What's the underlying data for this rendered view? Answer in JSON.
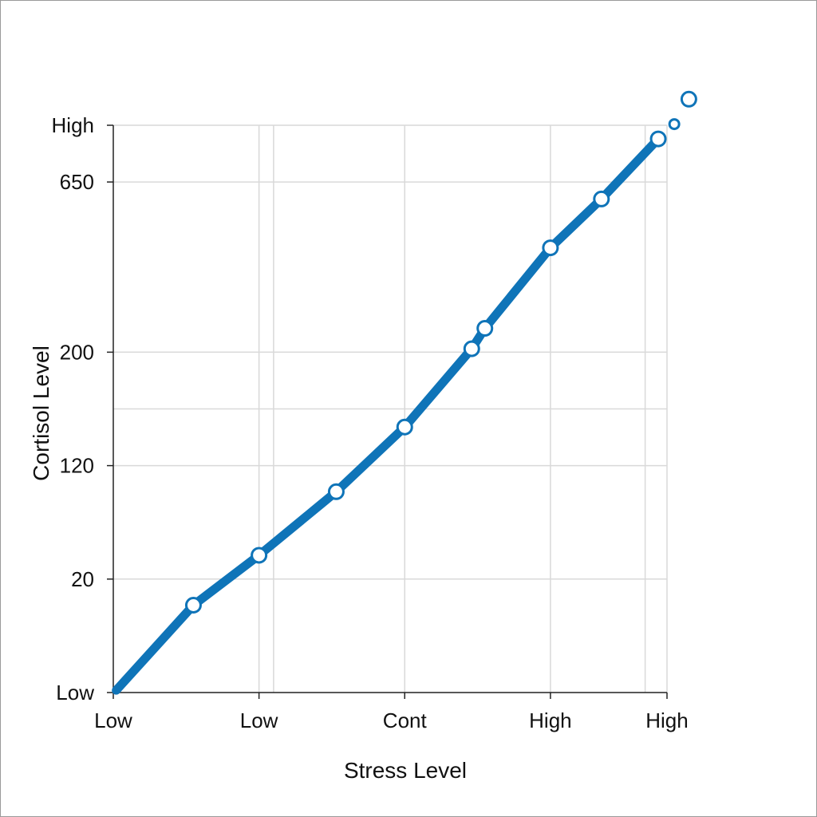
{
  "chart_data": {
    "type": "line",
    "title": "",
    "xlabel": "Stress Level",
    "ylabel": "Cortisol Level",
    "x_ticks": [
      "Low",
      "Low",
      "Cont",
      "High",
      "High"
    ],
    "y_ticks": [
      "Low",
      "20",
      "120",
      "200",
      "650",
      "High"
    ],
    "grid": true,
    "legend": "none",
    "series": [
      {
        "color": "#0f74b8",
        "points": [
          {
            "x": 0.02,
            "y": 0.02,
            "marker": false
          },
          {
            "x": 0.55,
            "y": 0.77
          },
          {
            "x": 1.0,
            "y": 1.21
          },
          {
            "x": 1.53,
            "y": 1.77
          },
          {
            "x": 2.0,
            "y": 2.34
          },
          {
            "x": 2.46,
            "y": 3.03
          },
          {
            "x": 2.55,
            "y": 3.21
          },
          {
            "x": 3.0,
            "y": 3.92
          },
          {
            "x": 3.35,
            "y": 4.35
          },
          {
            "x": 3.74,
            "y": 4.88
          }
        ]
      }
    ],
    "outliers": [
      {
        "x": 3.85,
        "y": 5.01,
        "size": "small"
      },
      {
        "x": 3.95,
        "y": 5.23,
        "size": "large"
      }
    ],
    "xlim": [
      0,
      3.8
    ],
    "ylim": [
      0,
      5.0
    ],
    "y_tick_positions": [
      0,
      1,
      2,
      3,
      4.5,
      5
    ],
    "x_tick_positions": [
      0,
      1,
      2,
      3,
      3.8
    ],
    "extra_vertical_gridlines": [
      1.1,
      3.65
    ],
    "extra_horizontal_gridlines": [
      2.5
    ]
  }
}
